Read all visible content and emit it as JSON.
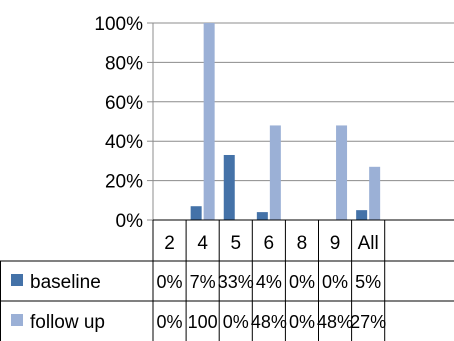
{
  "chart_data": {
    "type": "bar",
    "categories": [
      "2",
      "4",
      "5",
      "6",
      "8",
      "9",
      "All"
    ],
    "y_ticks": [
      "0%",
      "20%",
      "40%",
      "60%",
      "80%",
      "100%"
    ],
    "ylim": [
      0,
      100
    ],
    "grid": true,
    "legend_placement": "data-table",
    "series": [
      {
        "name": "baseline",
        "color": "#4472a8",
        "values": [
          0,
          7,
          33,
          4,
          0,
          0,
          5
        ],
        "labels": [
          "0%",
          "7%",
          "33%",
          "4%",
          "0%",
          "0%",
          "5%"
        ]
      },
      {
        "name": "follow up",
        "color": "#9bb0d6",
        "values": [
          0,
          100,
          0,
          48,
          0,
          48,
          27
        ],
        "labels": [
          "0%",
          "100",
          "0%",
          "48%",
          "0%",
          "48%",
          "27%"
        ]
      }
    ]
  }
}
